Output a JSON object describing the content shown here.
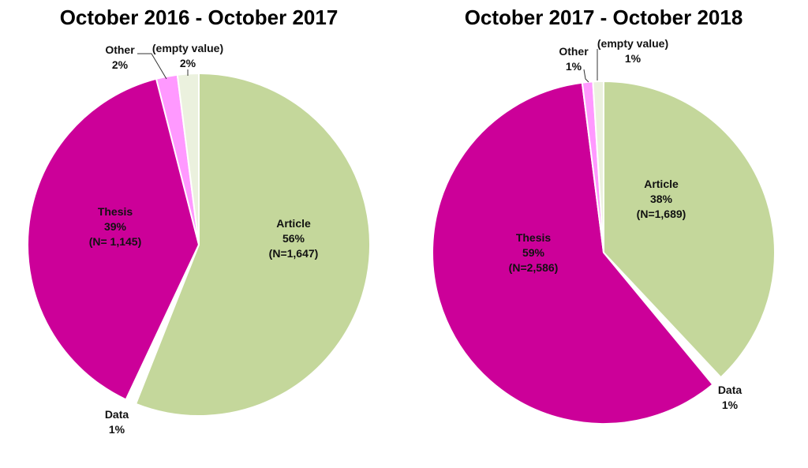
{
  "chart_data": [
    {
      "type": "pie",
      "title": "October 2016 - October 2017",
      "slices": [
        {
          "name": "Article",
          "value": 56,
          "count": 1647,
          "label": [
            "Article",
            "56%",
            "(N=1,647)"
          ],
          "color": "#c4d79b",
          "exploded": false
        },
        {
          "name": "Data",
          "value": 1,
          "label": [
            "Data",
            "1%"
          ],
          "color": "#ffffff",
          "exploded": true
        },
        {
          "name": "Thesis",
          "value": 39,
          "count": 1145,
          "label": [
            "Thesis",
            "39%",
            "(N= 1,145)"
          ],
          "color": "#cc0099",
          "exploded": false
        },
        {
          "name": "Other",
          "value": 2,
          "label": [
            "Other",
            "2%"
          ],
          "color": "#ff99ff",
          "exploded": false
        },
        {
          "name": "(empty value)",
          "value": 2,
          "label": [
            "(empty value)",
            "2%"
          ],
          "color": "#ebf1de",
          "exploded": false
        }
      ]
    },
    {
      "type": "pie",
      "title": "October 2017 - October 2018",
      "slices": [
        {
          "name": "Article",
          "value": 38,
          "count": 1689,
          "label": [
            "Article",
            "38%",
            "(N=1,689)"
          ],
          "color": "#c4d79b",
          "exploded": false
        },
        {
          "name": "Data",
          "value": 1,
          "label": [
            "Data",
            "1%"
          ],
          "color": "#ffffff",
          "exploded": true
        },
        {
          "name": "Thesis",
          "value": 59,
          "count": 2586,
          "label": [
            "Thesis",
            "59%",
            "(N=2,586)"
          ],
          "color": "#cc0099",
          "exploded": false
        },
        {
          "name": "Other",
          "value": 1,
          "label": [
            "Other",
            "1%"
          ],
          "color": "#ff99ff",
          "exploded": false
        },
        {
          "name": "(empty value)",
          "value": 1,
          "label": [
            "(empty value)",
            "1%"
          ],
          "color": "#ebf1de",
          "exploded": false
        }
      ]
    }
  ]
}
